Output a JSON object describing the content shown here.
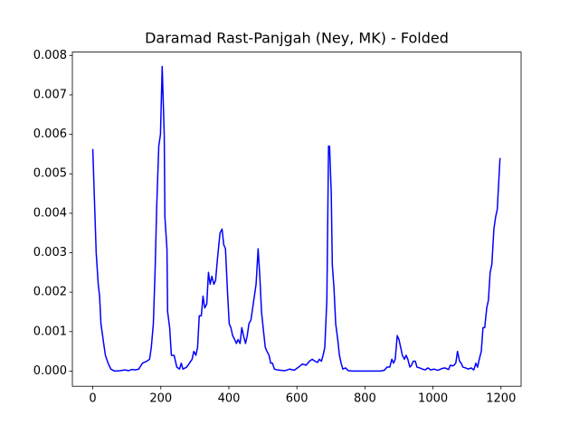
{
  "chart_data": {
    "type": "line",
    "title": "Daramad Rast-Panjgah (Ney, MK) - Folded",
    "color": "#0000ff",
    "x": [
      0,
      10,
      16,
      20,
      24,
      32,
      37,
      45,
      53,
      64,
      80,
      95,
      105,
      115,
      125,
      135,
      146,
      159,
      167,
      172,
      178,
      183,
      188,
      194,
      199,
      204,
      210,
      212,
      218,
      220,
      226,
      231,
      239,
      247,
      255,
      260,
      265,
      276,
      284,
      292,
      297,
      303,
      308,
      313,
      319,
      324,
      329,
      335,
      340,
      345,
      350,
      356,
      361,
      366,
      374,
      380,
      385,
      390,
      396,
      401,
      406,
      411,
      417,
      422,
      427,
      433,
      438,
      443,
      449,
      454,
      459,
      465,
      470,
      475,
      480,
      486,
      491,
      496,
      502,
      507,
      512,
      518,
      523,
      528,
      534,
      542,
      552,
      565,
      579,
      592,
      605,
      616,
      627,
      637,
      645,
      653,
      661,
      666,
      672,
      677,
      682,
      688,
      693,
      696,
      701,
      704,
      709,
      714,
      720,
      725,
      730,
      735,
      743,
      751,
      765,
      791,
      844,
      857,
      865,
      873,
      879,
      884,
      889,
      895,
      900,
      905,
      910,
      916,
      921,
      926,
      932,
      937,
      942,
      948,
      953,
      961,
      969,
      977,
      985,
      993,
      1003,
      1014,
      1025,
      1035,
      1046,
      1051,
      1057,
      1062,
      1067,
      1072,
      1078,
      1083,
      1088,
      1096,
      1104,
      1112,
      1120,
      1126,
      1131,
      1136,
      1142,
      1147,
      1152,
      1158,
      1163,
      1168,
      1173,
      1179,
      1184,
      1189,
      1197
    ],
    "values": [
      0.00563,
      0.003,
      0.0022,
      0.0019,
      0.0012,
      0.0007,
      0.0004,
      0.0002,
      5e-05,
      0,
      1e-05,
      3e-05,
      1e-05,
      4e-05,
      3e-05,
      5e-05,
      0.0002,
      0.00025,
      0.0003,
      0.0006,
      0.0012,
      0.0025,
      0.0042,
      0.0057,
      0.006,
      0.00772,
      0.006,
      0.0039,
      0.0031,
      0.0015,
      0.0011,
      0.0004,
      0.0004,
      0.0001,
      5e-05,
      0.0002,
      5e-05,
      0.0001,
      0.0002,
      0.0003,
      0.0005,
      0.0004,
      0.0006,
      0.0014,
      0.0014,
      0.0019,
      0.0016,
      0.0017,
      0.0025,
      0.0022,
      0.0024,
      0.0022,
      0.0023,
      0.0028,
      0.0035,
      0.0036,
      0.0032,
      0.0031,
      0.002,
      0.0012,
      0.0011,
      0.0009,
      0.0008,
      0.0007,
      0.0008,
      0.0007,
      0.0011,
      0.0009,
      0.0007,
      0.0009,
      0.0012,
      0.0013,
      0.0016,
      0.0019,
      0.0022,
      0.0031,
      0.0024,
      0.0015,
      0.001,
      0.0006,
      0.0005,
      0.0004,
      0.0002,
      0.0002,
      5e-05,
      3e-05,
      2e-05,
      1e-05,
      5e-05,
      2e-05,
      0.0001,
      0.00018,
      0.00015,
      0.00025,
      0.0003,
      0.00025,
      0.00022,
      0.0003,
      0.00025,
      0.0004,
      0.0006,
      0.0018,
      0.0057,
      0.0057,
      0.0045,
      0.0027,
      0.0021,
      0.0012,
      0.0008,
      0.0004,
      0.0002,
      5e-05,
      8e-05,
      1e-05,
      0,
      0,
      0,
      2e-05,
      0.0001,
      0.0001,
      0.0003,
      0.0002,
      0.0003,
      0.0009,
      0.0008,
      0.0006,
      0.0004,
      0.0003,
      0.0004,
      0.0003,
      0.0001,
      0.00015,
      0.00025,
      0.00025,
      0.0001,
      8e-05,
      5e-05,
      3e-05,
      8e-05,
      3e-05,
      5e-05,
      2e-05,
      6e-05,
      8e-05,
      4e-05,
      0.00015,
      0.00013,
      0.00015,
      0.0002,
      0.0005,
      0.00025,
      0.0002,
      0.0001,
      8e-05,
      5e-05,
      8e-05,
      3e-05,
      0.0002,
      0.0001,
      0.0003,
      0.0005,
      0.0011,
      0.0011,
      0.0016,
      0.0018,
      0.0025,
      0.0027,
      0.0036,
      0.0039,
      0.0041,
      0.0054
    ],
    "xlim": [
      -60,
      1259
    ],
    "ylim": [
      -0.000385,
      0.008085
    ],
    "xticks": [
      0,
      200,
      400,
      600,
      800,
      1000,
      1200
    ],
    "yticks": [
      {
        "value": 0,
        "label": "0.000"
      },
      {
        "value": 0.001,
        "label": "0.001"
      },
      {
        "value": 0.002,
        "label": "0.002"
      },
      {
        "value": 0.003,
        "label": "0.003"
      },
      {
        "value": 0.004,
        "label": "0.004"
      },
      {
        "value": 0.005,
        "label": "0.005"
      },
      {
        "value": 0.006,
        "label": "0.006"
      },
      {
        "value": 0.007,
        "label": "0.007"
      },
      {
        "value": 0.008,
        "label": "0.008"
      }
    ]
  }
}
